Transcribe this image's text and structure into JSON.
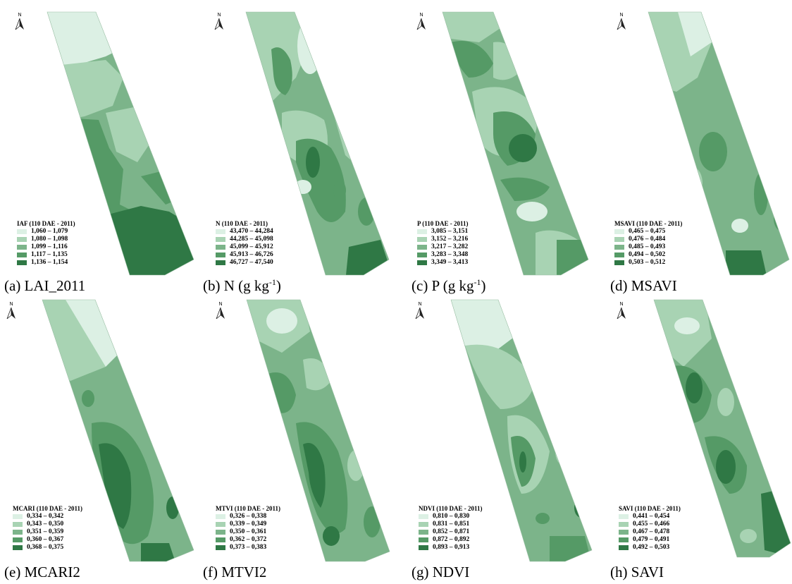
{
  "north_letter": "N",
  "class_colors": [
    "#dcf0e4",
    "#a8d3b3",
    "#7cb48a",
    "#559a66",
    "#2f7845"
  ],
  "panels": [
    {
      "caption": "(a) LAI_2011",
      "legend_title": "IAF (110 DAE - 2011)",
      "legend": [
        "1,060 – 1,079",
        "1,080 – 1,098",
        "1,099 – 1,116",
        "1,117 – 1,135",
        "1,136 – 1,154"
      ]
    },
    {
      "caption": "(b) N (g kg",
      "caption_sup": "-1",
      "caption_end": ")",
      "legend_title": "N (110 DAE - 2011)",
      "legend": [
        "43,470 – 44,284",
        "44,285 – 45,098",
        "45,099 – 45,912",
        "45,913 – 46,726",
        "46,727 – 47,540"
      ]
    },
    {
      "caption": "(c) P (g kg",
      "caption_sup": "-1",
      "caption_end": ")",
      "legend_title": "P (110 DAE - 2011)",
      "legend": [
        "3,085 – 3,151",
        "3,152 – 3,216",
        "3,217 – 3,282",
        "3,283 – 3,348",
        "3,349 – 3,413"
      ]
    },
    {
      "caption": "(d) MSAVI",
      "legend_title": "MSAVI (110 DAE - 2011)",
      "legend": [
        "0,465 – 0,475",
        "0,476 – 0,484",
        "0,485 – 0,493",
        "0,494 – 0,502",
        "0,503 – 0,512"
      ]
    },
    {
      "caption": "(e) MCARI2",
      "legend_title": "MCARI (110 DAE - 2011)",
      "legend": [
        "0,334 – 0,342",
        "0,343 – 0,350",
        "0,351 – 0,359",
        "0,360 – 0,367",
        "0,368 – 0,375"
      ]
    },
    {
      "caption": "(f) MTVI2",
      "legend_title": "MTVI (110 DAE - 2011)",
      "legend": [
        "0,326 – 0,338",
        "0,339 – 0,349",
        "0,350 – 0,361",
        "0,362 – 0,372",
        "0,373 – 0,383"
      ]
    },
    {
      "caption": "(g) NDVI",
      "legend_title": "NDVI (110 DAE - 2011)",
      "legend": [
        "0,810 – 0,830",
        "0,831 – 0,851",
        "0,852 – 0,871",
        "0,872 – 0,892",
        "0,893 – 0,913"
      ]
    },
    {
      "caption": "(h) SAVI",
      "legend_title": "SAVI (110 DAE - 2011)",
      "legend": [
        "0,441 – 0,454",
        "0,455 – 0,466",
        "0,467 – 0,478",
        "0,479 – 0,491",
        "0,492 – 0,503"
      ]
    }
  ]
}
